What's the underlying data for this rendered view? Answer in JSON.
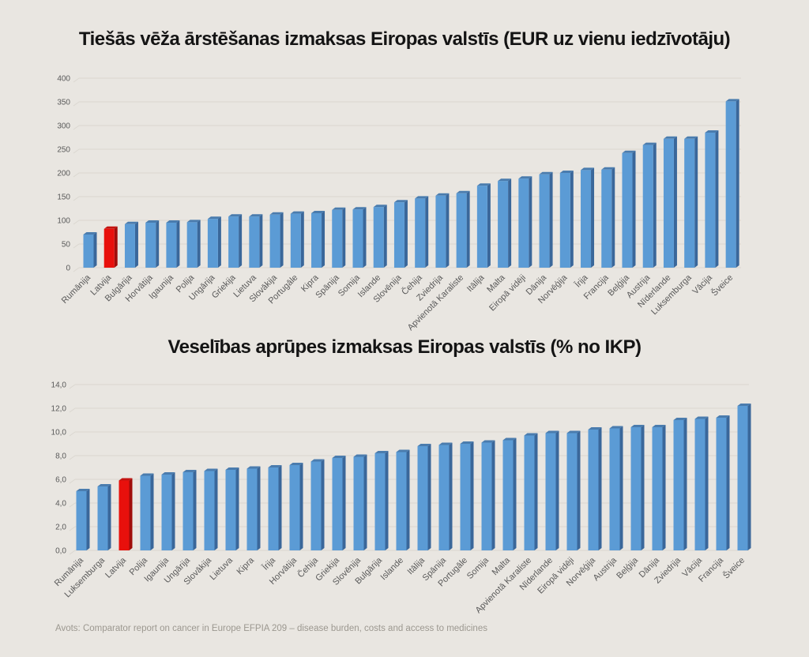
{
  "colors": {
    "background": "#E9E6E1",
    "bar_front": "#5B9BD5",
    "bar_side": "#3A679A",
    "bar_top": "#4A7CAE",
    "highlight_front": "#E8100C",
    "highlight_side": "#A00D0A",
    "highlight_top": "#C41310",
    "grid": "#DAD7D0",
    "axis_text": "#595959",
    "title_text": "#141414",
    "footer_text": "#9C9890"
  },
  "chart_data": [
    {
      "type": "bar",
      "title": "Tiešās vēža ārstēšanas izmaksas Eiropas valstīs (EUR uz vienu iedzīvotāju)",
      "xlabel": "",
      "ylabel": "",
      "ylim": [
        0,
        400
      ],
      "ytick_step": 50,
      "ytick_labels": [
        "0",
        "50",
        "100",
        "150",
        "200",
        "250",
        "300",
        "350",
        "400"
      ],
      "grid": true,
      "legend": false,
      "highlight_category": "Latvija",
      "categories": [
        "Rumānija",
        "Latvija",
        "Bulgārija",
        "Horvātija",
        "Igaunija",
        "Polija",
        "Ungārija",
        "Griekija",
        "Lietuva",
        "Slovākija",
        "Portugāle",
        "Kipra",
        "Spānija",
        "Somija",
        "Islande",
        "Slovēnija",
        "Čehija",
        "Zviedrija",
        "Apvienotā Karaliste",
        "Itālija",
        "Malta",
        "Eiropā vidēji",
        "Dānija",
        "Norvēģija",
        "Īrija",
        "Francija",
        "Beļģija",
        "Austrija",
        "Nīderlande",
        "Luksemburga",
        "Vācija",
        "Šveice"
      ],
      "values": [
        70,
        82,
        92,
        95,
        95,
        96,
        103,
        108,
        108,
        112,
        114,
        115,
        122,
        123,
        128,
        138,
        146,
        152,
        157,
        173,
        183,
        188,
        197,
        200,
        206,
        207,
        242,
        259,
        272,
        272,
        285,
        351
      ]
    },
    {
      "type": "bar",
      "title": "Veselības aprūpes izmaksas Eiropas valstīs (% no IKP)",
      "xlabel": "",
      "ylabel": "",
      "ylim": [
        0,
        14
      ],
      "ytick_step": 2,
      "ytick_labels": [
        "0,0",
        "2,0",
        "4,0",
        "6,0",
        "8,0",
        "10,0",
        "12,0",
        "14,0"
      ],
      "grid": true,
      "legend": false,
      "highlight_category": "Latvija",
      "categories": [
        "Rumānija",
        "Luksemburga",
        "Latvija",
        "Polija",
        "Igaunija",
        "Ungārija",
        "Slovākija",
        "Lietuva",
        "Kipra",
        "Īrija",
        "Horvātija",
        "Čehija",
        "Griekija",
        "Slovēnija",
        "Bulgārija",
        "Islande",
        "Itālija",
        "Spānija",
        "Portugāle",
        "Somija",
        "Malta",
        "Apvienotā Karaliste",
        "Nīderlande",
        "Eiropā vidēji",
        "Norvēģija",
        "Austrija",
        "Beļģija",
        "Dānija",
        "Zviedrija",
        "Vācija",
        "Francija",
        "Šveice"
      ],
      "values": [
        5.0,
        5.4,
        5.9,
        6.3,
        6.4,
        6.6,
        6.7,
        6.8,
        6.9,
        7.0,
        7.2,
        7.5,
        7.8,
        7.9,
        8.2,
        8.3,
        8.8,
        8.9,
        9.0,
        9.1,
        9.3,
        9.7,
        9.9,
        9.9,
        10.2,
        10.3,
        10.4,
        10.4,
        11.0,
        11.1,
        11.2,
        12.2
      ]
    }
  ],
  "footer": {
    "source": "Avots: Comparator report on cancer in Europe EFPIA 209 – disease burden, costs and access to medicines"
  }
}
